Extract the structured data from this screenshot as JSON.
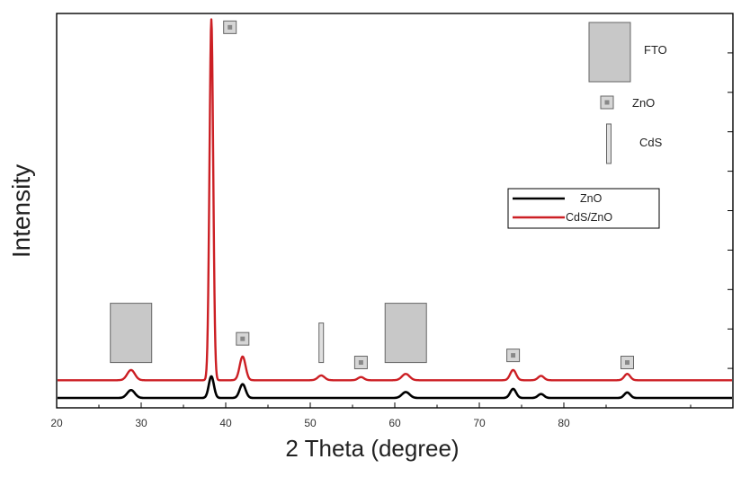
{
  "chart_data": {
    "type": "line",
    "title": "",
    "xlabel": "2 Theta (degree)",
    "ylabel": "Intensity",
    "xlim": [
      20,
      100
    ],
    "ylim": [
      0,
      100
    ],
    "x_ticks": [
      20,
      30,
      40,
      50,
      60,
      70,
      80
    ],
    "x_tick_labels": [
      "20",
      "30",
      "40",
      "50",
      "60",
      "70",
      "80"
    ],
    "y_tick_count": 9,
    "series": [
      {
        "name": "ZnO",
        "color": "#000000",
        "baseline": 2.5,
        "peaks": [
          {
            "x": 28.8,
            "h": 2.0,
            "w": 0.45
          },
          {
            "x": 38.3,
            "h": 5.5,
            "w": 0.3
          },
          {
            "x": 42.0,
            "h": 3.5,
            "w": 0.35
          },
          {
            "x": 61.3,
            "h": 1.5,
            "w": 0.45
          },
          {
            "x": 74.0,
            "h": 2.3,
            "w": 0.35
          },
          {
            "x": 77.3,
            "h": 1.0,
            "w": 0.35
          },
          {
            "x": 87.5,
            "h": 1.4,
            "w": 0.35
          }
        ]
      },
      {
        "name": "CdS/ZnO",
        "color": "#cc1f24",
        "baseline": 7.0,
        "peaks": [
          {
            "x": 28.8,
            "h": 2.6,
            "w": 0.45
          },
          {
            "x": 38.3,
            "h": 91.5,
            "w": 0.22
          },
          {
            "x": 42.0,
            "h": 6.0,
            "w": 0.35
          },
          {
            "x": 51.3,
            "h": 1.2,
            "w": 0.4
          },
          {
            "x": 56.0,
            "h": 0.8,
            "w": 0.35
          },
          {
            "x": 61.3,
            "h": 1.6,
            "w": 0.45
          },
          {
            "x": 74.0,
            "h": 2.6,
            "w": 0.35
          },
          {
            "x": 77.3,
            "h": 1.1,
            "w": 0.35
          },
          {
            "x": 87.5,
            "h": 1.6,
            "w": 0.35
          }
        ]
      }
    ],
    "phase_markers": [
      {
        "phase": "FTO",
        "x": 28.8,
        "y": 19
      },
      {
        "phase": "ZnO",
        "x": 40.5,
        "y": 96.5
      },
      {
        "phase": "ZnO",
        "x": 42.0,
        "y": 17.5
      },
      {
        "phase": "CdS",
        "x": 51.3,
        "y": 16.5
      },
      {
        "phase": "ZnO",
        "x": 56.0,
        "y": 11.5
      },
      {
        "phase": "FTO",
        "x": 61.3,
        "y": 19
      },
      {
        "phase": "ZnO",
        "x": 74.0,
        "y": 13.3
      },
      {
        "phase": "ZnO",
        "x": 87.5,
        "y": 11.5
      }
    ],
    "phase_legend": [
      {
        "phase": "FTO",
        "label": "FTO"
      },
      {
        "phase": "ZnO",
        "label": "ZnO"
      },
      {
        "phase": "CdS",
        "label": "CdS"
      }
    ],
    "legend": [
      {
        "name": "ZnO",
        "color": "#000000"
      },
      {
        "name": "CdS/ZnO",
        "color": "#cc1f24"
      }
    ],
    "legend_position": "center-right"
  }
}
